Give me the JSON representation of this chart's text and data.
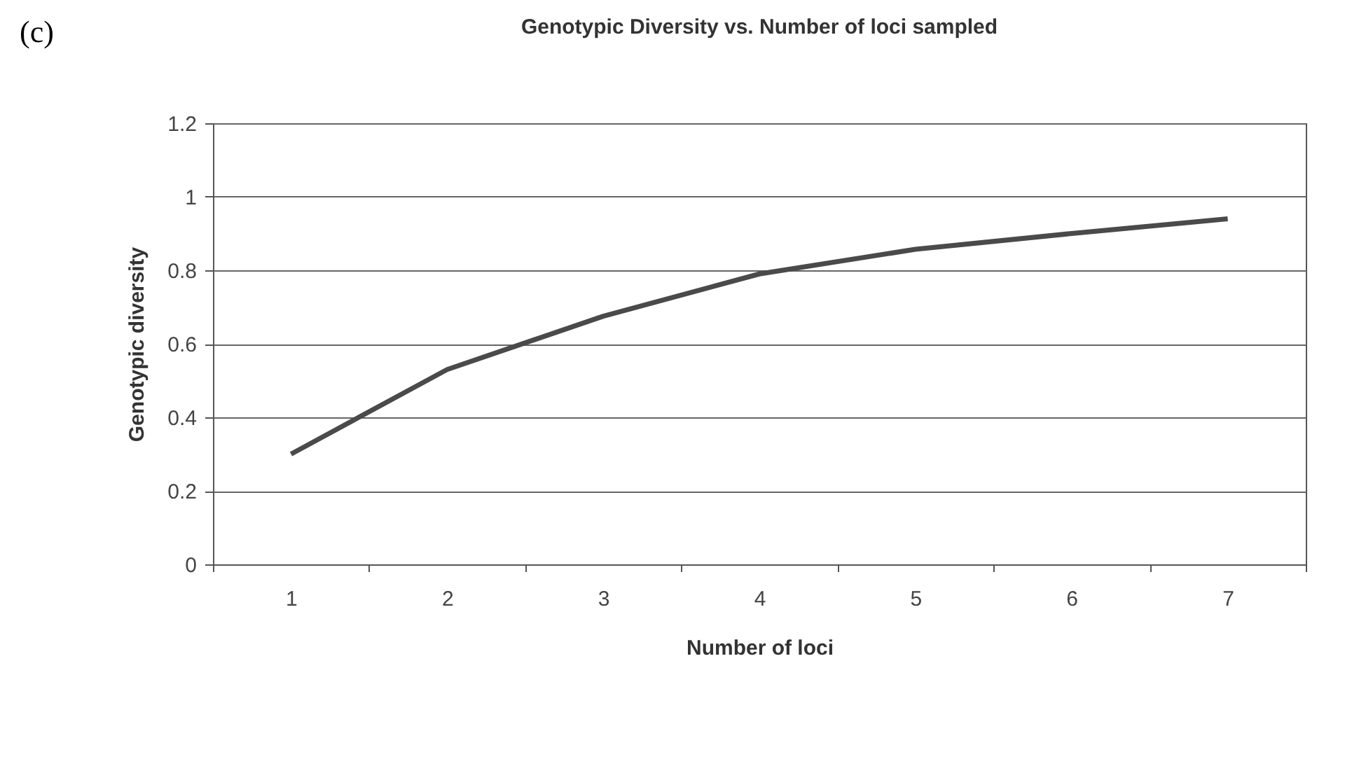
{
  "chart_data": {
    "type": "line",
    "title": "Genotypic Diversity vs. Number of loci sampled",
    "xlabel": "Number of loci",
    "ylabel": "Genotypic diversity",
    "annotations": [
      "(c)"
    ],
    "categories": [
      "1",
      "2",
      "3",
      "4",
      "5",
      "6",
      "7"
    ],
    "series": [
      {
        "color": "#4a4a4a",
        "values": [
          0.3,
          0.53,
          0.675,
          0.79,
          0.857,
          0.9,
          0.94
        ]
      }
    ],
    "ylim": [
      0,
      1.2
    ],
    "yticks": [
      0,
      0.2,
      0.4,
      0.6,
      0.8,
      1,
      1.2
    ],
    "grid": "y",
    "legend": false,
    "marker": "none",
    "line_style": "solid"
  }
}
